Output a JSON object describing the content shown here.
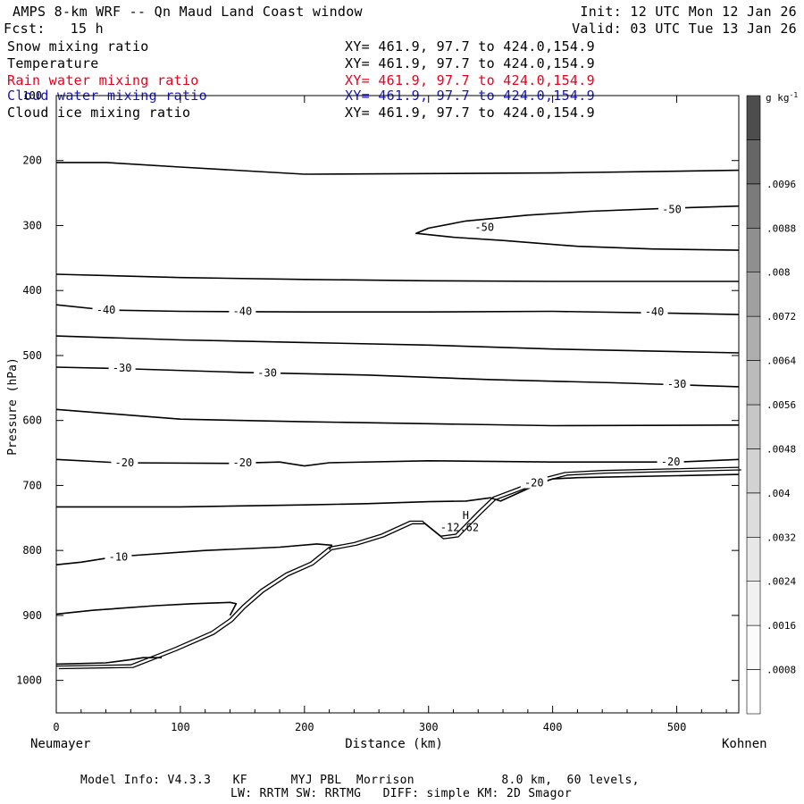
{
  "header": {
    "title": "AMPS 8-km WRF -- Qn Maud Land Coast window",
    "init": "Init: 12 UTC Mon 12 Jan 26",
    "fcst": "Fcst:   15 h",
    "valid": "Valid: 03 UTC Tue 13 Jan 26"
  },
  "fields": [
    {
      "name": "Snow mixing ratio",
      "xy": "XY= 461.9, 97.7 to 424.0,154.9",
      "color": "#000000"
    },
    {
      "name": "Temperature",
      "xy": "XY= 461.9, 97.7 to 424.0,154.9",
      "color": "#000000"
    },
    {
      "name": "Rain water mixing ratio",
      "xy": "XY= 461.9, 97.7 to 424.0,154.9",
      "color": "#e8001c"
    },
    {
      "name": "Cloud water mixing ratio",
      "xy": "XY= 461.9, 97.7 to 424.0,154.9",
      "color": "#1515c8"
    },
    {
      "name": "Cloud ice mixing ratio",
      "xy": "XY= 461.9, 97.7 to 424.0,154.9",
      "color": "#000000"
    }
  ],
  "footer": {
    "line1": "Model Info: V4.3.3   KF      MYJ PBL  Morrison            8.0 km,  60 levels,",
    "line2": "LW: RRTM SW: RRTMG   DIFF: simple KM: 2D Smagor"
  },
  "chart_data": {
    "type": "contour-cross-section",
    "xlabel": "Distance (km)",
    "ylabel": "Pressure (hPa)",
    "xlim": [
      0,
      550
    ],
    "ylim": [
      1050,
      100
    ],
    "x_ticks": [
      0,
      100,
      200,
      300,
      400,
      500
    ],
    "y_ticks": [
      1000,
      900,
      800,
      700,
      600,
      500,
      400,
      300,
      200,
      100
    ],
    "x_endpoints": {
      "left": "Neumayer",
      "right": "Kohnen"
    },
    "colorbar": {
      "unit": "g kg",
      "unit_exp": "-1",
      "labels": [
        ".0008",
        ".0016",
        ".0024",
        ".0032",
        ".004",
        ".0048",
        ".0056",
        ".0064",
        ".0072",
        ".008",
        ".0088",
        ".0096"
      ],
      "shades": [
        "#ffffff",
        "#fbfbfb",
        "#f1f1f1",
        "#e7e7e7",
        "#dddddd",
        "#d2d2d2",
        "#c7c7c7",
        "#bbbbbb",
        "#aeaeae",
        "#a0a0a0",
        "#8f8f8f",
        "#7b7b7b",
        "#666666",
        "#4d4d4d"
      ]
    },
    "terrain": [
      [
        0,
        978
      ],
      [
        60,
        976
      ],
      [
        95,
        950
      ],
      [
        125,
        925
      ],
      [
        140,
        905
      ],
      [
        150,
        885
      ],
      [
        165,
        860
      ],
      [
        185,
        835
      ],
      [
        205,
        818
      ],
      [
        220,
        795
      ],
      [
        240,
        788
      ],
      [
        262,
        775
      ],
      [
        285,
        755
      ],
      [
        295,
        755
      ],
      [
        310,
        778
      ],
      [
        322,
        775
      ],
      [
        340,
        740
      ],
      [
        352,
        718
      ],
      [
        370,
        705
      ],
      [
        390,
        690
      ],
      [
        410,
        680
      ],
      [
        440,
        677
      ],
      [
        550,
        672
      ]
    ],
    "isotherms": [
      {
        "label": "-50",
        "points": [
          [
            0,
            203
          ],
          [
            40,
            203
          ],
          [
            100,
            210
          ],
          [
            200,
            221
          ],
          [
            300,
            220
          ],
          [
            400,
            219
          ],
          [
            550,
            215
          ]
        ]
      },
      {
        "label": "-50",
        "points": [
          [
            550,
            270
          ],
          [
            500,
            273
          ],
          [
            430,
            278
          ],
          [
            380,
            284
          ],
          [
            330,
            293
          ],
          [
            300,
            304
          ],
          [
            290,
            312
          ],
          [
            320,
            318
          ],
          [
            360,
            323
          ],
          [
            420,
            332
          ],
          [
            480,
            336
          ],
          [
            550,
            338
          ]
        ],
        "label_pos": [
          [
            345,
            303
          ],
          [
            496,
            275
          ]
        ]
      },
      {
        "label": "",
        "points": [
          [
            0,
            375
          ],
          [
            100,
            380
          ],
          [
            200,
            383
          ],
          [
            300,
            385
          ],
          [
            400,
            386
          ],
          [
            550,
            386
          ]
        ]
      },
      {
        "label": "-40",
        "points": [
          [
            0,
            422
          ],
          [
            40,
            430
          ],
          [
            100,
            432
          ],
          [
            200,
            433
          ],
          [
            300,
            433
          ],
          [
            400,
            432
          ],
          [
            500,
            435
          ],
          [
            550,
            437
          ]
        ],
        "label_pos": [
          [
            40,
            430
          ],
          [
            150,
            432
          ],
          [
            482,
            433
          ]
        ]
      },
      {
        "label": "",
        "points": [
          [
            0,
            470
          ],
          [
            100,
            476
          ],
          [
            200,
            480
          ],
          [
            300,
            484
          ],
          [
            400,
            490
          ],
          [
            500,
            494
          ],
          [
            550,
            496
          ]
        ]
      },
      {
        "label": "-30",
        "points": [
          [
            0,
            518
          ],
          [
            50,
            520
          ],
          [
            150,
            526
          ],
          [
            250,
            530
          ],
          [
            350,
            537
          ],
          [
            450,
            542
          ],
          [
            550,
            548
          ]
        ],
        "label_pos": [
          [
            53,
            519
          ],
          [
            170,
            527
          ],
          [
            500,
            544
          ]
        ]
      },
      {
        "label": "",
        "points": [
          [
            0,
            583
          ],
          [
            100,
            598
          ],
          [
            200,
            602
          ],
          [
            300,
            605
          ],
          [
            400,
            608
          ],
          [
            550,
            607
          ]
        ]
      },
      {
        "label": "-20",
        "points": [
          [
            0,
            660
          ],
          [
            50,
            665
          ],
          [
            140,
            666
          ],
          [
            180,
            664
          ],
          [
            200,
            670
          ],
          [
            220,
            665
          ],
          [
            300,
            662
          ],
          [
            400,
            664
          ],
          [
            500,
            664
          ],
          [
            550,
            660
          ]
        ],
        "label_pos": [
          [
            55,
            665
          ],
          [
            150,
            665
          ],
          [
            495,
            664
          ]
        ]
      },
      {
        "label": "-20",
        "points": [
          [
            0,
            733
          ],
          [
            100,
            733
          ],
          [
            200,
            730
          ],
          [
            250,
            728
          ],
          [
            300,
            725
          ],
          [
            330,
            724
          ],
          [
            350,
            719
          ],
          [
            358,
            724
          ],
          [
            372,
            712
          ],
          [
            388,
            698
          ],
          [
            400,
            690
          ],
          [
            420,
            688
          ],
          [
            500,
            685
          ],
          [
            550,
            683
          ]
        ],
        "label_pos": [
          [
            385,
            696
          ]
        ]
      },
      {
        "label": "-10",
        "points": [
          [
            0,
            822
          ],
          [
            20,
            818
          ],
          [
            40,
            812
          ],
          [
            60,
            808
          ],
          [
            120,
            800
          ],
          [
            180,
            795
          ],
          [
            210,
            790
          ],
          [
            222,
            792
          ],
          [
            220,
            799
          ]
        ],
        "label_pos": [
          [
            50,
            810
          ]
        ]
      },
      {
        "label": "",
        "points": [
          [
            0,
            898
          ],
          [
            30,
            892
          ],
          [
            80,
            885
          ],
          [
            110,
            882
          ],
          [
            140,
            880
          ],
          [
            145,
            882
          ],
          [
            140,
            900
          ]
        ]
      },
      {
        "label": "",
        "points": [
          [
            0,
            975
          ],
          [
            40,
            973
          ],
          [
            60,
            968
          ],
          [
            70,
            965
          ],
          [
            85,
            965
          ]
        ]
      }
    ],
    "annotations": [
      {
        "text": "H",
        "x": 330,
        "y": 752
      },
      {
        "text": "-12.62",
        "x": 325,
        "y": 770
      }
    ]
  }
}
